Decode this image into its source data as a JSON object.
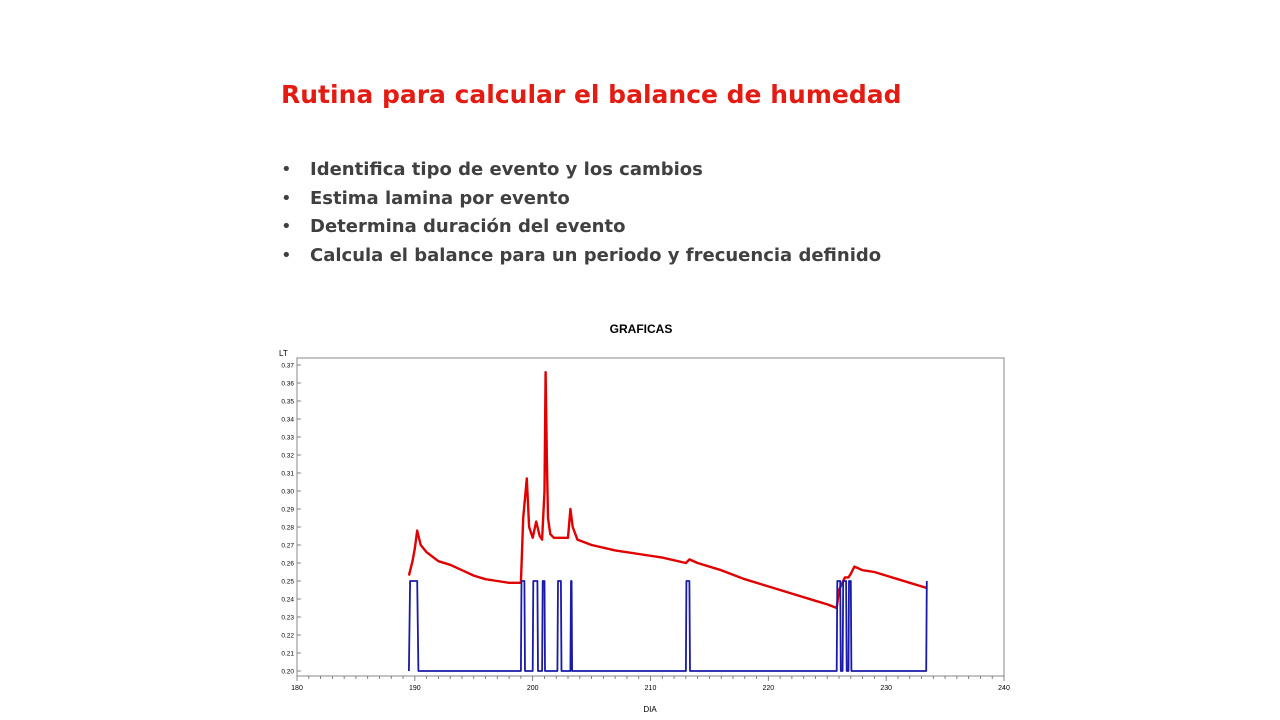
{
  "slide": {
    "title": "Rutina para calcular el balance de humedad",
    "bullets": [
      "Identifica tipo de evento y los cambios",
      "Estima lamina por evento",
      "Determina duración del evento",
      "Calcula el balance para un periodo y frecuencia definido"
    ]
  },
  "chart_data": {
    "type": "line",
    "title": "GRAFICAS",
    "xlabel": "DIA",
    "ylabel": "LT",
    "xlim": [
      180,
      240
    ],
    "ylim": [
      0.2,
      0.37
    ],
    "x_ticks": [
      180,
      190,
      200,
      210,
      220,
      230,
      240
    ],
    "y_ticks": [
      0.2,
      0.21,
      0.22,
      0.23,
      0.24,
      0.25,
      0.26,
      0.27,
      0.28,
      0.29,
      0.3,
      0.31,
      0.32,
      0.33,
      0.34,
      0.35,
      0.36,
      0.37
    ],
    "grid": false,
    "colors": {
      "series_1": "#e00000",
      "series_2": "#1a1aa8"
    },
    "series": [
      {
        "x": [
          189.5,
          189.8,
          190.0,
          190.2,
          190.5,
          191.0,
          192.0,
          193.0,
          194.0,
          195.0,
          196.0,
          197.0,
          198.0,
          199.0,
          199.2,
          199.5,
          199.7,
          200.0,
          200.3,
          200.6,
          200.8,
          201.0,
          201.1,
          201.2,
          201.3,
          201.5,
          201.8,
          202.5,
          203.0,
          203.2,
          203.4,
          203.8,
          205.0,
          207.0,
          209.0,
          211.0,
          213.0,
          213.3,
          214.0,
          216.0,
          218.0,
          220.0,
          222.0,
          224.0,
          225.0,
          225.8,
          226.0,
          226.5,
          226.8,
          227.0,
          227.3,
          228.0,
          229.0,
          230.0,
          231.0,
          232.0,
          233.0,
          233.5
        ],
        "y": [
          0.253,
          0.261,
          0.268,
          0.278,
          0.27,
          0.266,
          0.261,
          0.259,
          0.256,
          0.253,
          0.251,
          0.25,
          0.249,
          0.249,
          0.285,
          0.307,
          0.28,
          0.274,
          0.283,
          0.275,
          0.273,
          0.3,
          0.366,
          0.32,
          0.285,
          0.276,
          0.274,
          0.274,
          0.274,
          0.29,
          0.28,
          0.273,
          0.27,
          0.267,
          0.265,
          0.263,
          0.26,
          0.262,
          0.26,
          0.256,
          0.251,
          0.247,
          0.243,
          0.239,
          0.237,
          0.235,
          0.245,
          0.252,
          0.252,
          0.254,
          0.258,
          0.256,
          0.255,
          0.253,
          0.251,
          0.249,
          0.247,
          0.246
        ]
      },
      {
        "x": [
          189.5,
          189.6,
          190.2,
          190.3,
          199.0,
          199.05,
          199.3,
          199.35,
          200.0,
          200.05,
          200.4,
          200.45,
          200.8,
          200.85,
          201.0,
          201.05,
          202.1,
          202.15,
          202.4,
          202.45,
          203.2,
          203.25,
          203.3,
          203.35,
          213.0,
          213.05,
          213.3,
          213.35,
          225.8,
          225.85,
          226.1,
          226.15,
          226.3,
          226.35,
          226.6,
          226.65,
          226.8,
          226.85,
          227.0,
          227.05,
          233.4,
          233.45
        ],
        "y": [
          0.2,
          0.25,
          0.25,
          0.2,
          0.2,
          0.25,
          0.25,
          0.2,
          0.2,
          0.25,
          0.25,
          0.2,
          0.2,
          0.25,
          0.25,
          0.2,
          0.2,
          0.25,
          0.25,
          0.2,
          0.2,
          0.25,
          0.25,
          0.2,
          0.2,
          0.25,
          0.25,
          0.2,
          0.2,
          0.25,
          0.25,
          0.2,
          0.2,
          0.25,
          0.25,
          0.2,
          0.2,
          0.25,
          0.25,
          0.2,
          0.2,
          0.25
        ]
      }
    ]
  }
}
